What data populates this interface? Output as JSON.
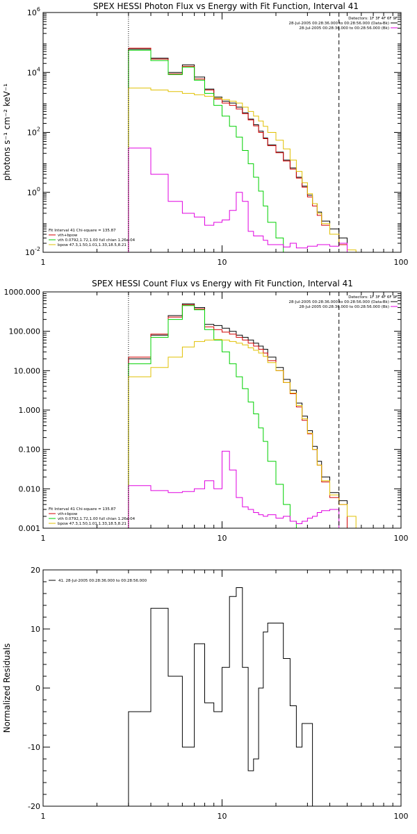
{
  "colors": {
    "data": "#000000",
    "total": "#d40000",
    "vth": "#00d000",
    "bpow": "#e0c000",
    "bk": "#e000e0"
  },
  "chart_data": [
    {
      "type": "line",
      "title": "SPEX HESSI Photon Flux vs Energy with Fit Function, Interval 41",
      "ylabel": "photons s⁻¹ cm⁻² keV⁻¹",
      "xscale": "log",
      "yscale": "log",
      "xlim": [
        1,
        100
      ],
      "ylim": [
        0.01,
        1000000
      ],
      "xticks": [
        "1",
        "10",
        "100"
      ],
      "yticks": [
        {
          "value": 1000000,
          "base": "10",
          "exp": "6"
        },
        {
          "value": 10000,
          "base": "10",
          "exp": "4"
        },
        {
          "value": 100,
          "base": "10",
          "exp": "2"
        },
        {
          "value": 1,
          "base": "10",
          "exp": "0"
        },
        {
          "value": 0.01,
          "base": "10",
          "exp": "-2"
        }
      ],
      "vlines": [
        {
          "x": 3.0,
          "style": "dotted"
        },
        {
          "x": 45,
          "style": "dashed"
        }
      ],
      "legend_top": [
        "Detectors: 1F 3F 4F 6F 9F",
        "28-Jul-2005 00:28:36.000 to 00:28:56.000 (Data-Bk)",
        "28-Jul-2005 00:28:36.000 to 00:28:56.000 (Bk)"
      ],
      "legend_bottom": [
        "Fit Interval 41    Chi-square = 135.87",
        "vth+bpow",
        "vth 0.0792,1.72,1.00  full chian 1.26e-04",
        "bpow 47.3,1.50,1.01,1.33,18.5,8.21"
      ],
      "edges": [
        3,
        3.5,
        4,
        4.5,
        5,
        5.5,
        6,
        6.5,
        7,
        7.5,
        8,
        8.5,
        9,
        9.5,
        10,
        10.5,
        11,
        11.5,
        12,
        13,
        14,
        15,
        16,
        17,
        18,
        20,
        22,
        24,
        26,
        28,
        30,
        32,
        34,
        36,
        40,
        45,
        50,
        56,
        63
      ],
      "series": [
        {
          "key": "data",
          "values": [
            60000,
            60000,
            30000,
            30000,
            10000,
            10000,
            18000,
            18000,
            7000,
            7000,
            2800,
            2800,
            1500,
            1500,
            1100,
            1100,
            950,
            950,
            700,
            450,
            280,
            180,
            110,
            65,
            38,
            22,
            12,
            6.5,
            3.2,
            1.6,
            0.8,
            0.42,
            0.22,
            0.11,
            0.06,
            0.03,
            null,
            null
          ]
        },
        {
          "key": "total",
          "values": [
            65000,
            65000,
            28000,
            28000,
            9000,
            9000,
            16000,
            16000,
            6000,
            6000,
            2600,
            2600,
            1300,
            1300,
            950,
            950,
            800,
            800,
            600,
            420,
            260,
            165,
            100,
            62,
            36,
            21,
            11,
            6,
            3.0,
            1.5,
            0.7,
            0.35,
            0.17,
            0.08,
            0.04,
            0.018,
            null,
            null
          ]
        },
        {
          "key": "vth",
          "values": [
            55000,
            55000,
            25000,
            25000,
            8500,
            8500,
            15000,
            15000,
            5500,
            5500,
            2000,
            2000,
            800,
            800,
            350,
            350,
            160,
            160,
            70,
            25,
            9,
            3.2,
            1.1,
            0.35,
            0.1,
            0.03,
            0.008,
            null,
            null,
            null,
            null,
            null,
            null,
            null,
            null,
            null,
            null,
            null
          ]
        },
        {
          "key": "bpow",
          "values": [
            3000,
            3000,
            2600,
            2600,
            2300,
            2300,
            2000,
            2000,
            1800,
            1800,
            1600,
            1600,
            1400,
            1400,
            1250,
            1250,
            1100,
            1100,
            950,
            700,
            500,
            350,
            240,
            160,
            100,
            55,
            28,
            12,
            5,
            2.1,
            0.9,
            0.42,
            0.2,
            0.09,
            0.04,
            0.02,
            0.012,
            0.006
          ]
        },
        {
          "key": "bk",
          "values": [
            30,
            30,
            4,
            4,
            0.5,
            0.5,
            0.2,
            0.2,
            0.15,
            0.15,
            0.08,
            0.08,
            0.1,
            0.1,
            0.12,
            0.12,
            0.25,
            0.25,
            1.0,
            0.5,
            0.05,
            0.035,
            0.035,
            0.025,
            0.018,
            0.018,
            0.015,
            0.02,
            0.014,
            0.014,
            0.016,
            0.016,
            0.018,
            0.018,
            0.016,
            0.02,
            null,
            null
          ]
        }
      ]
    },
    {
      "type": "line",
      "title": "SPEX HESSI Count Flux vs Energy with Fit Function, Interval 41",
      "ylabel": "",
      "xscale": "log",
      "yscale": "log",
      "xlim": [
        1,
        100
      ],
      "ylim": [
        0.001,
        1000
      ],
      "xticks": [
        "1",
        "10",
        "100"
      ],
      "yticks": [
        {
          "value": 1000,
          "label": "1000.000"
        },
        {
          "value": 100,
          "label": "100.000"
        },
        {
          "value": 10,
          "label": "10.000"
        },
        {
          "value": 1,
          "label": "1.000"
        },
        {
          "value": 0.1,
          "label": "0.100"
        },
        {
          "value": 0.01,
          "label": "0.010"
        },
        {
          "value": 0.001,
          "label": "0.001"
        }
      ],
      "vlines": [
        {
          "x": 3.0,
          "style": "dotted"
        },
        {
          "x": 45,
          "style": "dashed"
        }
      ],
      "legend_top": [
        "Detectors: 1F 3F 4F 6F 9F",
        "28-Jul-2005 00:28:36.000 to 00:28:56.000 (Data-Bk)",
        "28-Jul-2005 00:28:36.000 to 00:28:56.000 (Bk)"
      ],
      "legend_bottom": [
        "Fit Interval 41    Chi-square = 135.87",
        "vth+bpow",
        "vth 0.0792,1.72,1.00  full chian 1.26e-04",
        "bpow 47.3,1.50,1.01,1.33,18.5,8.21"
      ],
      "edges": [
        3,
        4,
        5,
        6,
        7,
        8,
        9,
        10,
        11,
        12,
        13,
        14,
        15,
        16,
        17,
        18,
        20,
        22,
        24,
        26,
        28,
        30,
        32,
        34,
        36,
        40,
        45,
        50,
        56,
        63
      ],
      "series": [
        {
          "key": "data",
          "values": [
            20,
            80,
            250,
            500,
            400,
            150,
            140,
            120,
            100,
            80,
            70,
            60,
            50,
            42,
            35,
            22,
            12,
            6,
            3.2,
            1.5,
            0.7,
            0.3,
            0.12,
            0.05,
            0.02,
            0.008,
            0.005,
            null,
            null
          ]
        },
        {
          "key": "total",
          "values": [
            22,
            85,
            230,
            470,
            370,
            130,
            110,
            95,
            85,
            70,
            60,
            50,
            42,
            35,
            28,
            18,
            10,
            5,
            2.6,
            1.2,
            0.55,
            0.25,
            0.1,
            0.04,
            0.015,
            0.006,
            0.004,
            null,
            null
          ]
        },
        {
          "key": "vth",
          "values": [
            15,
            70,
            200,
            450,
            350,
            110,
            60,
            30,
            15,
            7,
            3.5,
            1.6,
            0.8,
            0.35,
            0.16,
            0.05,
            0.013,
            0.004,
            0.0015,
            null,
            null,
            null,
            null,
            null,
            null,
            null,
            null,
            null,
            null
          ]
        },
        {
          "key": "bpow",
          "values": [
            7,
            12,
            22,
            40,
            55,
            60,
            62,
            60,
            55,
            50,
            45,
            38,
            33,
            28,
            23,
            16,
            10,
            5,
            2.7,
            1.3,
            0.6,
            0.26,
            0.1,
            0.04,
            0.016,
            0.007,
            0.004,
            0.002,
            0.001
          ]
        },
        {
          "key": "bk",
          "values": [
            0.012,
            0.009,
            0.008,
            0.0085,
            0.01,
            0.016,
            0.01,
            0.09,
            0.03,
            0.006,
            0.0035,
            0.003,
            0.0025,
            0.0022,
            0.002,
            0.0022,
            0.0018,
            0.002,
            0.0015,
            0.0013,
            0.0015,
            0.0018,
            0.002,
            0.0025,
            0.0028,
            0.003,
            null,
            null,
            null
          ]
        }
      ]
    },
    {
      "type": "line",
      "title": "",
      "ylabel": "Normalized Residuals",
      "xscale": "log",
      "yscale": "linear",
      "xlim": [
        1,
        100
      ],
      "ylim": [
        -20,
        20
      ],
      "xticks": [
        "1",
        "10",
        "100"
      ],
      "yticks": [
        {
          "value": 20,
          "label": "20"
        },
        {
          "value": 10,
          "label": "10"
        },
        {
          "value": 0,
          "label": "0"
        },
        {
          "value": -10,
          "label": "-10"
        },
        {
          "value": -20,
          "label": "-20"
        }
      ],
      "legend": [
        "41. 28-Jul-2005 00:28:36.000 to 00:28:56.000"
      ],
      "edges": [
        3,
        3.5,
        4,
        4.5,
        5,
        5.5,
        6,
        6.5,
        7,
        7.5,
        8,
        8.5,
        9,
        9.5,
        10,
        10.5,
        11,
        11.5,
        12,
        13,
        14,
        15,
        16,
        17,
        18,
        20,
        22,
        24,
        26,
        28,
        30,
        32,
        34,
        36,
        40,
        45
      ],
      "series": [
        {
          "key": "data",
          "values": [
            -4,
            -4,
            13.5,
            13.5,
            2,
            2,
            -10,
            -10,
            7.5,
            7.5,
            -2.5,
            -2.5,
            -4,
            -4,
            3.5,
            3.5,
            15.5,
            15.5,
            17,
            3.5,
            -14,
            -12,
            0,
            9.5,
            11,
            11,
            5,
            -3,
            -10,
            -6,
            -6,
            null,
            null,
            null,
            null
          ]
        }
      ]
    }
  ]
}
